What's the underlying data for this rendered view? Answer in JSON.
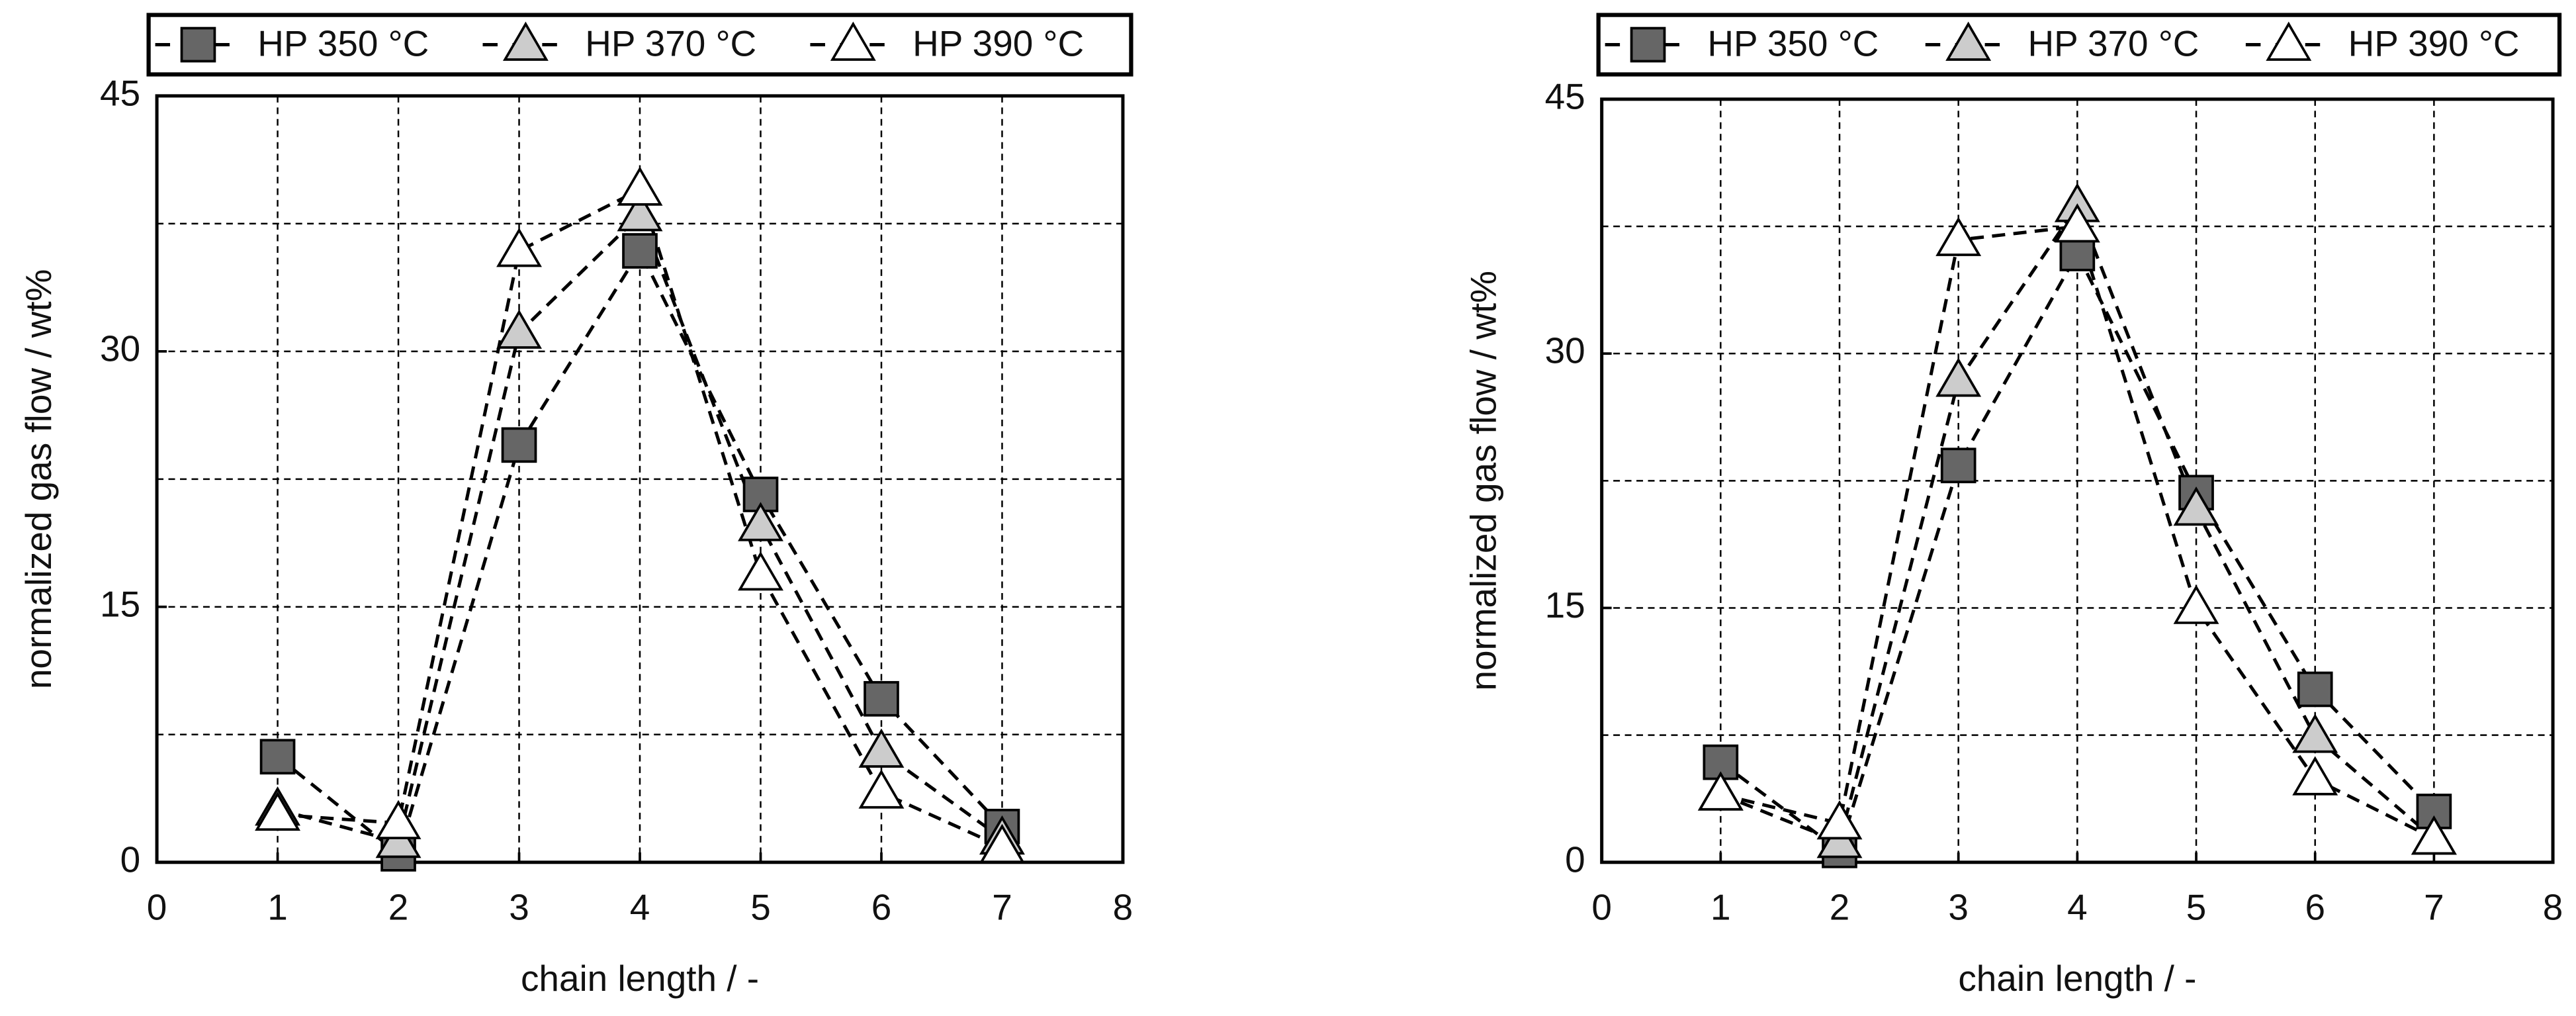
{
  "chart_data": [
    {
      "type": "line",
      "x_label": "chain length / -",
      "y_label": "normalized gas flow / wt%",
      "x": [
        1,
        2,
        3,
        4,
        5,
        6,
        7
      ],
      "series": [
        {
          "name": "HP 350 °C",
          "color": "#666666",
          "marker": "square",
          "values": [
            6.2,
            0.5,
            24.5,
            35.9,
            21.6,
            9.6,
            2.1
          ]
        },
        {
          "name": "HP 370 °C",
          "color": "#cccccc",
          "marker": "triangle",
          "values": [
            3.1,
            1.2,
            31.1,
            38.0,
            19.8,
            6.5,
            1.4
          ]
        },
        {
          "name": "HP 390 °C",
          "color": "#ffffff",
          "marker": "triangle",
          "values": [
            2.8,
            2.3,
            35.9,
            39.5,
            16.9,
            4.1,
            0.9
          ]
        }
      ],
      "xlim": [
        0,
        8
      ],
      "xticks": [
        0,
        1,
        2,
        3,
        4,
        5,
        6,
        7,
        8
      ],
      "ylim": [
        0,
        45
      ],
      "yticks": [
        0,
        15,
        30,
        45
      ],
      "minor_yticks": [
        7.5,
        22.5,
        37.5
      ],
      "grid": true,
      "legend": "top"
    },
    {
      "type": "line",
      "x_label": "chain length / -",
      "y_label": "normalized gas flow / wt%",
      "x": [
        1,
        2,
        3,
        4,
        5,
        6,
        7
      ],
      "series": [
        {
          "name": "HP 350 °C",
          "color": "#666666",
          "marker": "square",
          "values": [
            5.9,
            0.7,
            23.4,
            35.9,
            21.8,
            10.2,
            3.0
          ]
        },
        {
          "name": "HP 370 °C",
          "color": "#cccccc",
          "marker": "triangle",
          "values": [
            4.0,
            1.2,
            28.4,
            38.7,
            20.8,
            7.4,
            1.4
          ]
        },
        {
          "name": "HP 390 °C",
          "color": "#ffffff",
          "marker": "triangle",
          "values": [
            4.0,
            2.3,
            36.7,
            37.5,
            15.0,
            4.9,
            1.4
          ]
        }
      ],
      "xlim": [
        0,
        8
      ],
      "xticks": [
        0,
        1,
        2,
        3,
        4,
        5,
        6,
        7,
        8
      ],
      "ylim": [
        0,
        45
      ],
      "yticks": [
        0,
        15,
        30,
        45
      ],
      "minor_yticks": [
        7.5,
        22.5,
        37.5
      ],
      "grid": true,
      "legend": "top"
    }
  ]
}
